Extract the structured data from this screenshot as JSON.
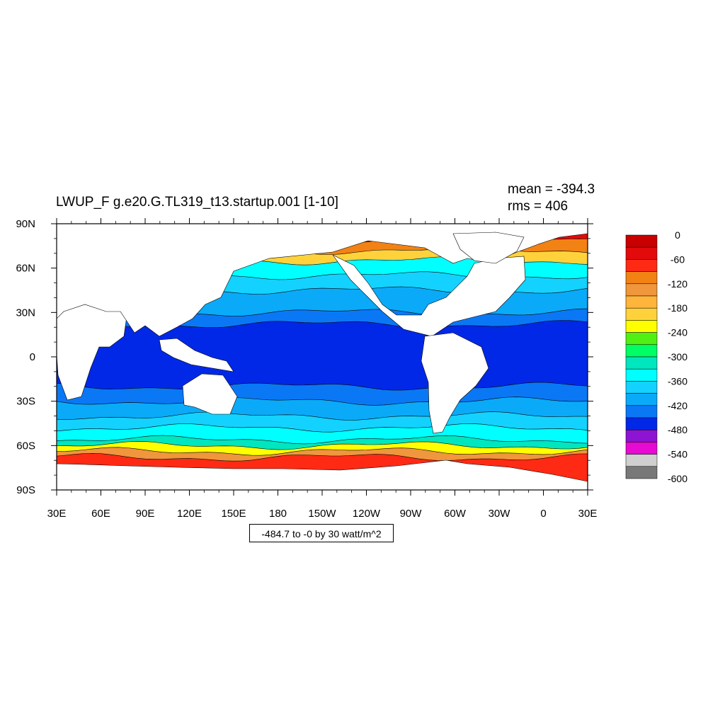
{
  "title": "LWUP_F g.e20.G.TL319_t13.startup.001 [1-10]",
  "stats": {
    "mean": "mean = -394.3",
    "rms": "rms = 406"
  },
  "range_note": "-484.7 to -0 by 30 watt/m^2",
  "chart_data": {
    "type": "heatmap",
    "variable": "LWUP_F",
    "units": "watt/m^2",
    "lon_range": [
      30,
      390
    ],
    "lat_range": [
      -90,
      90
    ],
    "x_ticks": [
      "30E",
      "60E",
      "90E",
      "120E",
      "150E",
      "180",
      "150W",
      "120W",
      "90W",
      "60W",
      "30W",
      "0",
      "30E"
    ],
    "y_ticks": [
      "90N",
      "60N",
      "30N",
      "0",
      "30S",
      "60S",
      "90S"
    ],
    "data_min": -484.7,
    "data_max": 0,
    "contour_interval": 30,
    "colorbar": {
      "labels": [
        "0",
        "-60",
        "-120",
        "-180",
        "-240",
        "-300",
        "-360",
        "-420",
        "-480",
        "-540",
        "-600"
      ],
      "colors": [
        "#c80000",
        "#e20a0a",
        "#ff2a14",
        "#f28214",
        "#f0963c",
        "#ffb43c",
        "#ffd23c",
        "#ffff00",
        "#50f014",
        "#00ff64",
        "#00e6be",
        "#00ffff",
        "#14d2ff",
        "#0aaaf8",
        "#0a78f5",
        "#0028e6",
        "#8c14d2",
        "#e60ad2",
        "#cfcfcf",
        "#787878"
      ]
    },
    "zonal_bands": [
      {
        "lat_top": 90,
        "lat_bottom": 80,
        "value": -30
      },
      {
        "lat_top": 80,
        "lat_bottom": 72,
        "value": -90
      },
      {
        "lat_top": 72,
        "lat_bottom": 65,
        "value": -180
      },
      {
        "lat_top": 65,
        "lat_bottom": 55,
        "value": -330
      },
      {
        "lat_top": 55,
        "lat_bottom": 45,
        "value": -360
      },
      {
        "lat_top": 45,
        "lat_bottom": 30,
        "value": -390
      },
      {
        "lat_top": 30,
        "lat_bottom": 22,
        "value": -420
      },
      {
        "lat_top": 22,
        "lat_bottom": -20,
        "value": -450
      },
      {
        "lat_top": -20,
        "lat_bottom": -30,
        "value": -420
      },
      {
        "lat_top": -30,
        "lat_bottom": -40,
        "value": -390
      },
      {
        "lat_top": -40,
        "lat_bottom": -48,
        "value": -360
      },
      {
        "lat_top": -48,
        "lat_bottom": -56,
        "value": -330
      },
      {
        "lat_top": -56,
        "lat_bottom": -60,
        "value": -300
      },
      {
        "lat_top": -60,
        "lat_bottom": -64,
        "value": -210
      },
      {
        "lat_top": -64,
        "lat_bottom": -68,
        "value": -120
      },
      {
        "lat_top": -68,
        "lat_bottom": -90,
        "value": -60
      }
    ]
  }
}
